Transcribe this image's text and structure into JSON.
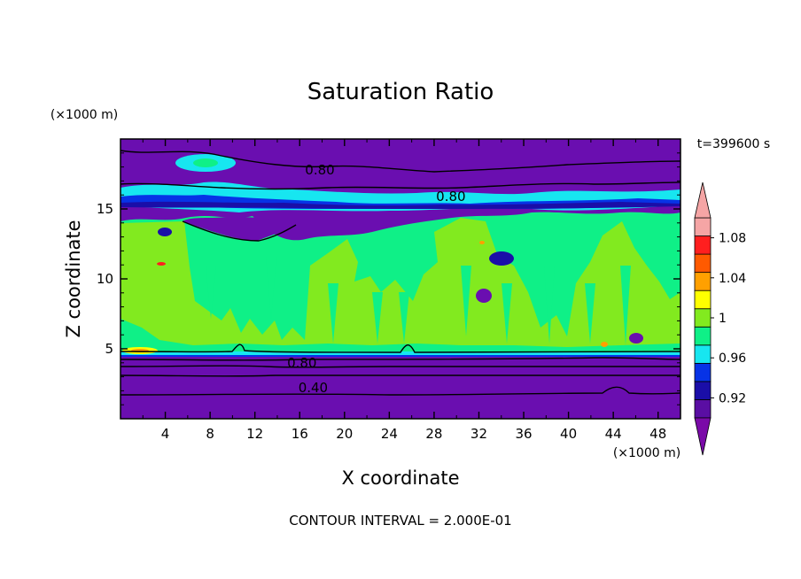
{
  "chart_data": {
    "type": "heatmap",
    "title": "Saturation Ratio",
    "xlabel": "X coordinate",
    "ylabel": "Z coordinate",
    "x_unit": "(×1000 m)",
    "y_unit": "(×1000 m)",
    "time_label": "t=399600 s",
    "footer": "CONTOUR INTERVAL = 2.000E-01",
    "xlim": [
      0,
      50
    ],
    "ylim": [
      0,
      20
    ],
    "x_ticks": [
      4,
      8,
      12,
      16,
      20,
      24,
      28,
      32,
      36,
      40,
      44,
      48
    ],
    "y_ticks": [
      5,
      10,
      15
    ],
    "colorbar": {
      "levels": [
        0.9,
        0.92,
        0.94,
        0.96,
        0.98,
        1.0,
        1.02,
        1.04,
        1.06,
        1.08,
        1.1
      ],
      "labeled_ticks": [
        {
          "value": 0.92,
          "text": "0.92"
        },
        {
          "value": 0.96,
          "text": "0.96"
        },
        {
          "value": 1.0,
          "text": "1"
        },
        {
          "value": 1.04,
          "text": "1.04"
        },
        {
          "value": 1.08,
          "text": "1.08"
        }
      ],
      "colors": [
        "#5a0ea3",
        "#1a0ea8",
        "#0733e6",
        "#17e6f0",
        "#0ff087",
        "#82ea1f",
        "#ffff00",
        "#ffa000",
        "#ff5a00",
        "#ff1f1f",
        "#f5a5a5"
      ],
      "under_color": "#7a0aa8",
      "over_color": "#f5a5a5"
    },
    "contour_labels": [
      {
        "text": "0.80",
        "x": 17.8,
        "z": 17.8
      },
      {
        "text": "0.80",
        "x": 29.5,
        "z": 15.9
      },
      {
        "text": "0.80",
        "x": 16.2,
        "z": 4.0
      },
      {
        "text": "0.40",
        "x": 17.2,
        "z": 2.2
      }
    ],
    "regions": {
      "purple_background_value": 0.85,
      "moist_layer_z": [
        4.8,
        14.8
      ],
      "green_value": 1.0,
      "lightgreen_value": 1.01,
      "aqua_value": 0.97,
      "blue_value": 0.93
    }
  }
}
